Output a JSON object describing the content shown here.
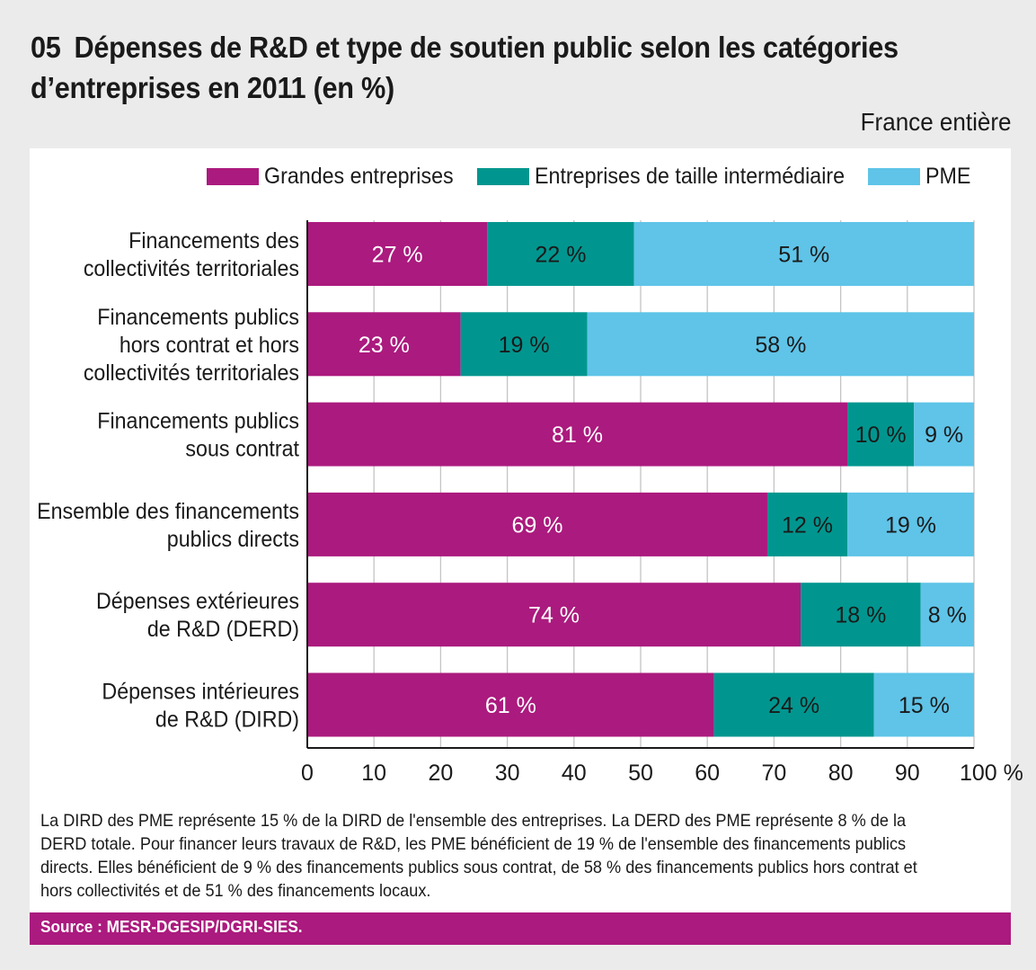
{
  "header": {
    "number": "05",
    "title_line1": "Dépenses de R&D et type de soutien public selon les catégories",
    "title_line2": "d’entreprises en 2011 (en %)",
    "scope": "France entière"
  },
  "colors": {
    "grandes": "#ab1a7e",
    "eti": "#00968f",
    "pme": "#5fc4e8",
    "panel": "#ffffff",
    "background": "#ebebeb"
  },
  "chart_data": {
    "type": "bar",
    "orientation": "horizontal",
    "stacked": true,
    "title": "Dépenses de R&D et type de soutien public selon les catégories d’entreprises en 2011 (en %)",
    "categories": [
      [
        "Financements des",
        "collectivités territoriales"
      ],
      [
        "Financements publics",
        "hors contrat et hors",
        "collectivités territoriales"
      ],
      [
        "Financements publics",
        "sous contrat"
      ],
      [
        "Ensemble des financements",
        "publics directs"
      ],
      [
        "Dépenses extérieures",
        "de R&D (DERD)"
      ],
      [
        "Dépenses intérieures",
        "de R&D (DIRD)"
      ]
    ],
    "series": [
      {
        "name": "Grandes entreprises",
        "key": "grandes",
        "values": [
          27,
          23,
          81,
          69,
          74,
          61
        ],
        "labels": [
          "27 %",
          "23 %",
          "81 %",
          "69 %",
          "74 %",
          "61 %"
        ]
      },
      {
        "name": "Entreprises de taille intermédiaire",
        "key": "eti",
        "values": [
          22,
          19,
          10,
          12,
          18,
          24
        ],
        "labels": [
          "22 %",
          "19 %",
          "10 %",
          "12 %",
          "18 %",
          "24 %"
        ]
      },
      {
        "name": "PME",
        "key": "pme",
        "values": [
          51,
          58,
          9,
          19,
          8,
          15
        ],
        "labels": [
          "51 %",
          "58 %",
          "9 %",
          "19 %",
          "8 %",
          "15 %"
        ]
      }
    ],
    "xlim": [
      0,
      100
    ],
    "xticks": [
      0,
      10,
      20,
      30,
      40,
      50,
      60,
      70,
      80,
      90,
      100
    ],
    "xtick_labels": [
      "0",
      "10",
      "20",
      "30",
      "40",
      "50",
      "60",
      "70",
      "80",
      "90",
      "100 %"
    ],
    "grid": true,
    "legend": "top-right"
  },
  "note": "La DIRD des PME représente 15 % de la DIRD de l'ensemble des entreprises. La DERD des PME représente 8 % de la DERD totale. Pour financer leurs travaux de R&D, les PME bénéficient de 19 % de l'ensemble des financements publics directs. Elles bénéficient de 9 % des financements publics sous contrat, de 58 % des financements publics hors contrat et hors collectivités et de 51 % des financements locaux.",
  "source": "Source : MESR-DGESIP/DGRI-SIES."
}
